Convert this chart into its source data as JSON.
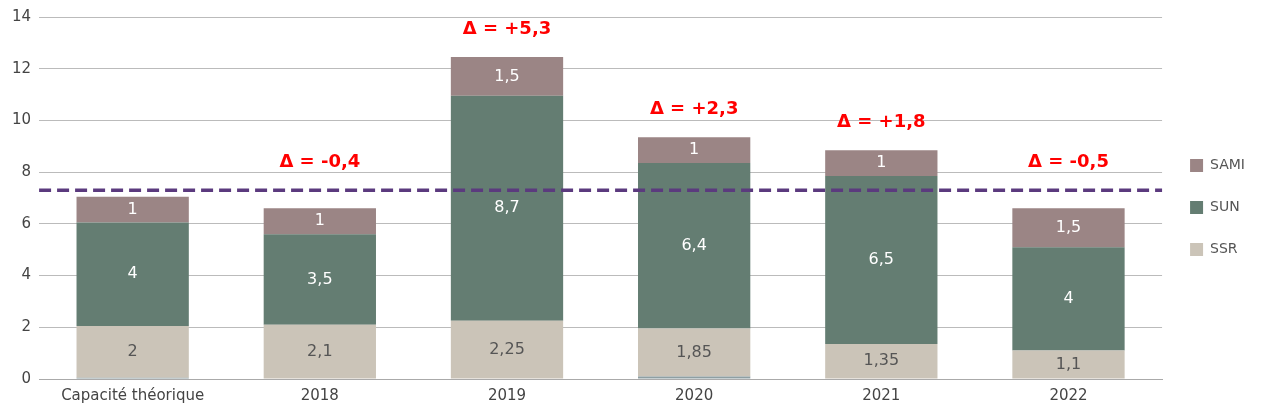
{
  "chart_data": {
    "type": "bar",
    "stacked": true,
    "categories": [
      "Capacité théorique",
      "2018",
      "2019",
      "2020",
      "2021",
      "2022"
    ],
    "series": [
      {
        "color": "#8e9fa3",
        "values": [
          0.05,
          null,
          null,
          0.1,
          null,
          null
        ],
        "value_labels": [
          null,
          null,
          null,
          null,
          null,
          null
        ]
      },
      {
        "name": "SSR",
        "color": "#cbc4b8",
        "values": [
          2,
          2.1,
          2.25,
          1.85,
          1.35,
          1.1
        ],
        "value_labels": [
          "2",
          "2,1",
          "2,25",
          "1,85",
          "1,35",
          "1,1"
        ]
      },
      {
        "name": "SUN",
        "color": "#647d72",
        "values": [
          4,
          3.5,
          8.7,
          6.4,
          6.5,
          4
        ],
        "value_labels": [
          "4",
          "3,5",
          "8,7",
          "6,4",
          "6,5",
          "4"
        ]
      },
      {
        "name": "SAMI",
        "color": "#9b8585",
        "values": [
          1,
          1,
          1.5,
          1,
          1,
          1.5
        ],
        "value_labels": [
          "1",
          "1",
          "1,5",
          "1",
          "1",
          "1,5"
        ]
      }
    ],
    "ylim": [
      0,
      14
    ],
    "yticks": [
      0,
      2,
      4,
      6,
      8,
      10,
      12,
      14
    ],
    "grid": "y",
    "legend": "right",
    "ref_lines": [
      {
        "axis": "y",
        "value": 7.3,
        "color": "#5b3a7e",
        "line_style": "dashed"
      }
    ],
    "annotations": [
      "Δ = -0,4",
      "Δ = +5,3",
      "Δ = +2,3",
      "Δ = +1,8",
      "Δ = -0,5"
    ]
  }
}
